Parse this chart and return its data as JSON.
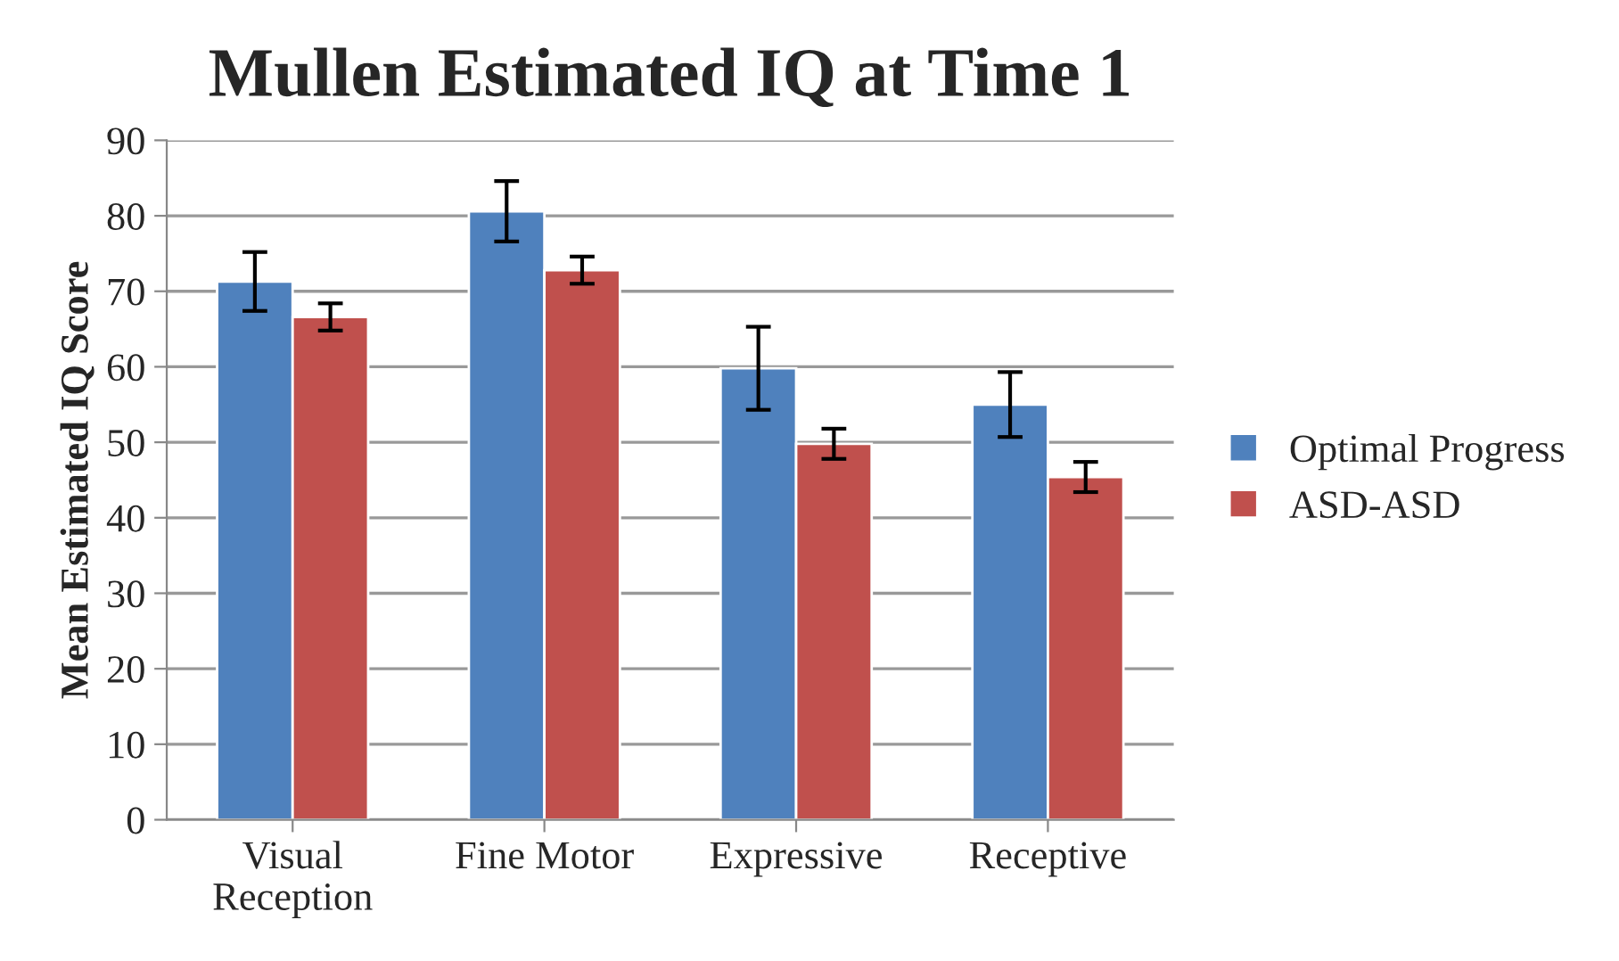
{
  "chart_data": {
    "type": "bar",
    "title": "Mullen Estimated IQ at Time 1",
    "ylabel": "Mean Estimated IQ Score",
    "categories": [
      "Visual\nReception",
      "Fine Motor",
      "Expressive",
      "Receptive"
    ],
    "series": [
      {
        "name": "Optimal Progress",
        "color": "#4f81bd",
        "values": [
          71.3,
          80.6,
          59.8,
          55.0
        ],
        "errors": [
          3.9,
          4.0,
          5.5,
          4.3
        ]
      },
      {
        "name": "ASD-ASD",
        "color": "#c0504d",
        "values": [
          66.6,
          72.8,
          49.8,
          45.4
        ],
        "errors": [
          1.8,
          1.8,
          2.0,
          2.0
        ]
      }
    ],
    "ylim": [
      0,
      90
    ],
    "yticks": [
      0,
      10,
      20,
      30,
      40,
      50,
      60,
      70,
      80,
      90
    ],
    "grid": "y",
    "legend": "right"
  }
}
